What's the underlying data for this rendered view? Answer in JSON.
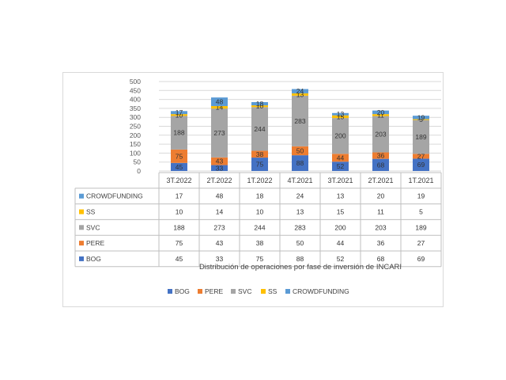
{
  "chart_data": {
    "type": "bar",
    "stacked": true,
    "title": "Distribución de operaciones por fase de inversión de INCARI",
    "categories": [
      "3T.2022",
      "2T.2022",
      "1T.2022",
      "4T.2021",
      "3T.2021",
      "2T.2021",
      "1T.2021"
    ],
    "ylim": [
      0,
      500
    ],
    "yticks": [
      0,
      50,
      100,
      150,
      200,
      250,
      300,
      350,
      400,
      450,
      500
    ],
    "grid": true,
    "legend_position": "bottom",
    "data_table": true,
    "series": [
      {
        "name": "BOG",
        "color": "#4472c4",
        "values": [
          45,
          33,
          75,
          88,
          52,
          68,
          69
        ]
      },
      {
        "name": "PERE",
        "color": "#ed7d31",
        "values": [
          75,
          43,
          38,
          50,
          44,
          36,
          27
        ]
      },
      {
        "name": "SVC",
        "color": "#a5a5a5",
        "values": [
          188,
          273,
          244,
          283,
          200,
          203,
          189
        ]
      },
      {
        "name": "SS",
        "color": "#ffc000",
        "values": [
          10,
          14,
          10,
          13,
          15,
          11,
          5
        ]
      },
      {
        "name": "CROWDFUNDING",
        "color": "#5b9bd5",
        "values": [
          17,
          48,
          18,
          24,
          13,
          20,
          19
        ]
      }
    ]
  }
}
